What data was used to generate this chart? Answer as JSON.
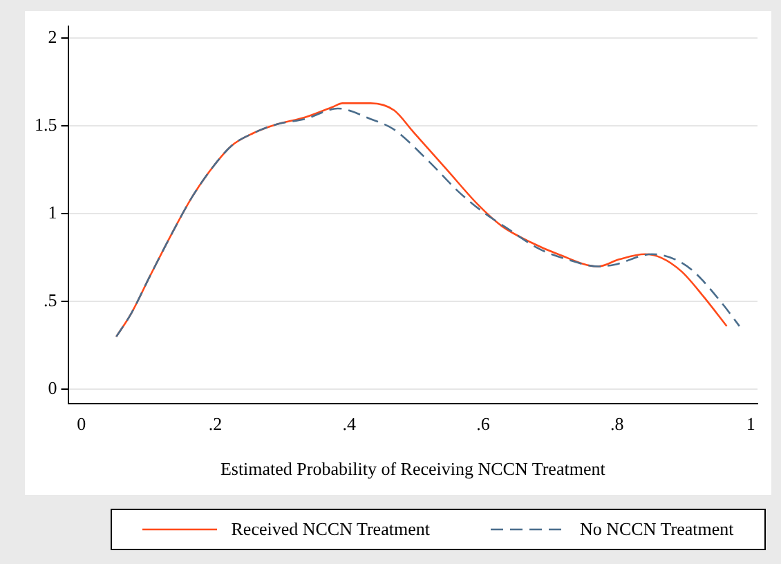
{
  "chart_data": {
    "type": "line",
    "xlabel": "Estimated Probability of Receiving NCCN Treatment",
    "xlim": [
      -0.02,
      1.01
    ],
    "xticks": [
      0,
      {
        "value": 0.2,
        "label": ".2"
      },
      {
        "value": 0.4,
        "label": ".4"
      },
      {
        "value": 0.6,
        "label": ".6"
      },
      {
        "value": 0.8,
        "label": ".8"
      },
      1
    ],
    "ylim": [
      -0.08,
      2.07
    ],
    "yticks": [
      0,
      {
        "value": 0.5,
        "label": ".5"
      },
      1,
      {
        "value": 1.5,
        "label": "1.5"
      },
      2
    ],
    "grid": "y",
    "legend": "bottom",
    "marker": "none",
    "series": [
      {
        "name": "Received NCCN Treatment",
        "color": "#ff4a1a",
        "line_style": "solid",
        "x": [
          0.052,
          0.074,
          0.103,
          0.134,
          0.166,
          0.197,
          0.225,
          0.257,
          0.292,
          0.334,
          0.376,
          0.39,
          0.432,
          0.467,
          0.495,
          0.544,
          0.593,
          0.628,
          0.67,
          0.712,
          0.772,
          0.803,
          0.842,
          0.866,
          0.897,
          0.929,
          0.964
        ],
        "values": [
          0.3,
          0.43,
          0.65,
          0.88,
          1.1,
          1.27,
          1.39,
          1.46,
          1.51,
          1.55,
          1.61,
          1.63,
          1.63,
          1.59,
          1.47,
          1.26,
          1.05,
          0.93,
          0.84,
          0.77,
          0.7,
          0.74,
          0.77,
          0.75,
          0.67,
          0.53,
          0.36
        ]
      },
      {
        "name": "No NCCN Treatment",
        "color": "#4a6d8c",
        "line_style": "dashed",
        "x": [
          0.052,
          0.074,
          0.103,
          0.134,
          0.166,
          0.197,
          0.225,
          0.257,
          0.292,
          0.334,
          0.383,
          0.432,
          0.467,
          0.516,
          0.565,
          0.6,
          0.635,
          0.684,
          0.726,
          0.772,
          0.796,
          0.852,
          0.887,
          0.915,
          0.957,
          0.983
        ],
        "values": [
          0.3,
          0.43,
          0.65,
          0.88,
          1.1,
          1.27,
          1.39,
          1.46,
          1.51,
          1.54,
          1.6,
          1.54,
          1.48,
          1.31,
          1.12,
          1.01,
          0.92,
          0.8,
          0.74,
          0.7,
          0.71,
          0.77,
          0.74,
          0.67,
          0.49,
          0.36
        ]
      }
    ]
  }
}
